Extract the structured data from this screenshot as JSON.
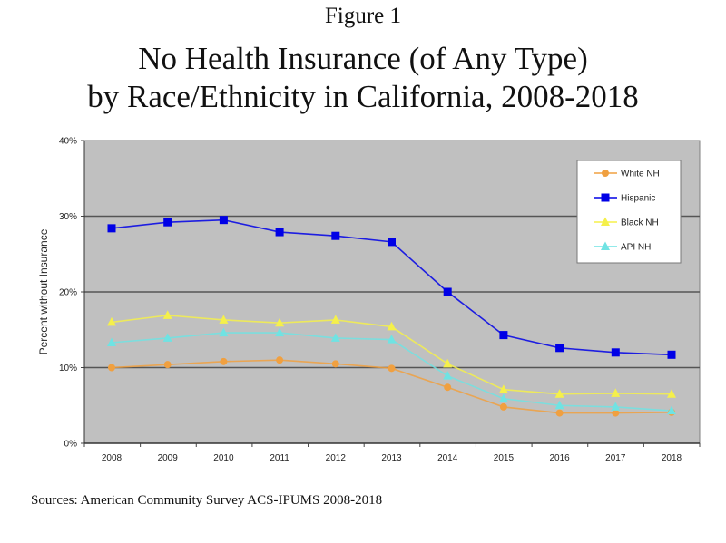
{
  "figure_label": "Figure 1",
  "title_line1": "No Health Insurance (of Any Type)",
  "title_line2": "by Race/Ethnicity in California, 2008-2018",
  "source": "Sources:  American Community Survey ACS-IPUMS 2008-2018",
  "chart_data": {
    "type": "line",
    "title": "No Health Insurance (of Any Type) by Race/Ethnicity in California, 2008-2018",
    "xlabel": "",
    "ylabel": "Percent without Insurance",
    "x": [
      "2008",
      "2009",
      "2010",
      "2011",
      "2012",
      "2013",
      "2014",
      "2015",
      "2016",
      "2017",
      "2018"
    ],
    "ylim": [
      0,
      40
    ],
    "yticks": [
      0,
      10,
      20,
      30,
      40
    ],
    "ytick_labels": [
      "0%",
      "10%",
      "20%",
      "30%",
      "40%"
    ],
    "grid": true,
    "legend_position": "top-right",
    "series": [
      {
        "name": "White NH",
        "color": "#f0a040",
        "marker": "circle",
        "values": [
          10.0,
          10.4,
          10.8,
          11.0,
          10.5,
          9.9,
          7.4,
          4.8,
          4.0,
          4.0,
          4.1
        ]
      },
      {
        "name": "Hispanic",
        "color": "#0000e6",
        "marker": "square",
        "values": [
          28.4,
          29.2,
          29.5,
          27.9,
          27.4,
          26.6,
          20.0,
          14.3,
          12.6,
          12.0,
          11.7
        ]
      },
      {
        "name": "Black NH",
        "color": "#f5f04a",
        "marker": "triangle",
        "values": [
          16.0,
          16.9,
          16.3,
          15.9,
          16.3,
          15.4,
          10.5,
          7.1,
          6.5,
          6.6,
          6.5
        ]
      },
      {
        "name": "API NH",
        "color": "#6fe3e3",
        "marker": "triangle",
        "values": [
          13.3,
          13.9,
          14.6,
          14.6,
          13.9,
          13.7,
          8.9,
          5.9,
          5.0,
          4.8,
          4.3
        ]
      }
    ]
  }
}
